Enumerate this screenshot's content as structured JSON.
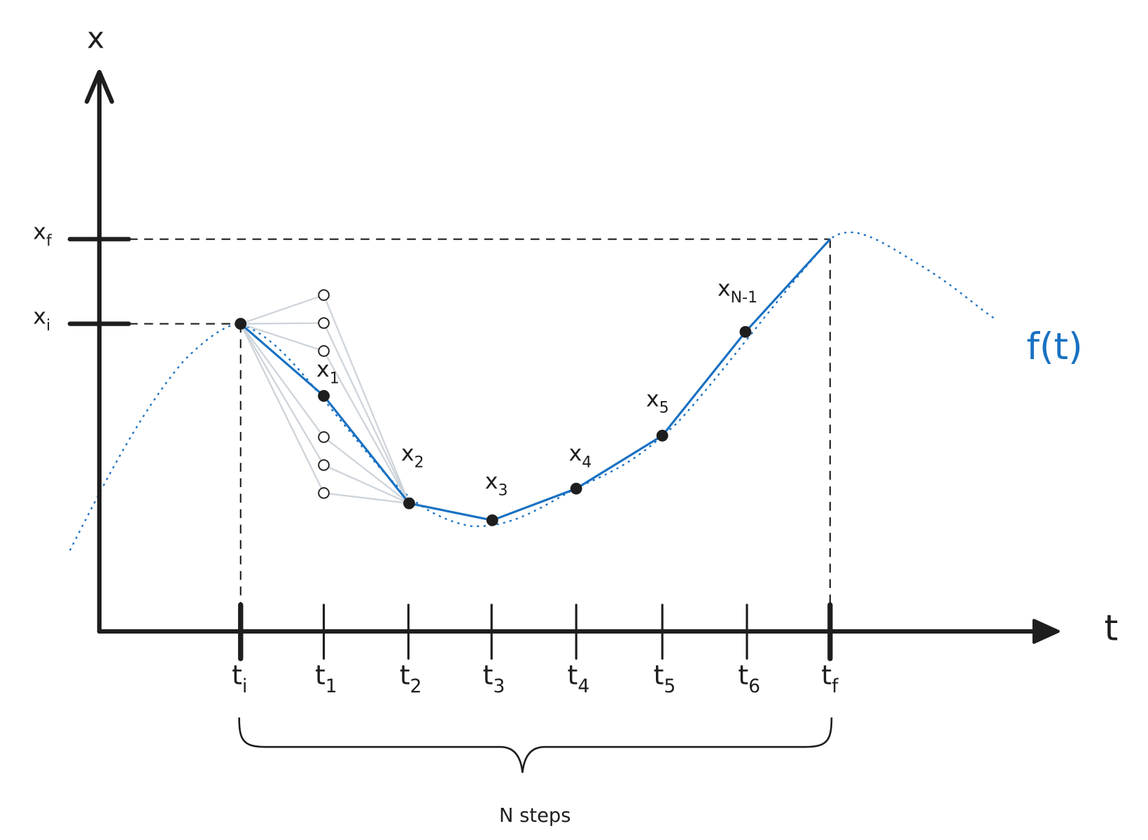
{
  "axes": {
    "vertical_label": "x",
    "horizontal_label": "t"
  },
  "x_ticks": [
    {
      "base": "x",
      "sub": "f"
    },
    {
      "base": "x",
      "sub": "i"
    }
  ],
  "t_ticks": [
    {
      "base": "t",
      "sub": "i"
    },
    {
      "base": "t",
      "sub": "1"
    },
    {
      "base": "t",
      "sub": "2"
    },
    {
      "base": "t",
      "sub": "3"
    },
    {
      "base": "t",
      "sub": "4"
    },
    {
      "base": "t",
      "sub": "5"
    },
    {
      "base": "t",
      "sub": "6"
    },
    {
      "base": "t",
      "sub": "f"
    }
  ],
  "points": [
    {
      "base": "x",
      "sub": "1"
    },
    {
      "base": "x",
      "sub": "2"
    },
    {
      "base": "x",
      "sub": "3"
    },
    {
      "base": "x",
      "sub": "4"
    },
    {
      "base": "x",
      "sub": "5"
    },
    {
      "base": "x",
      "sub": "N-1"
    }
  ],
  "curve_label": "f(t)",
  "brace_label": "N steps"
}
